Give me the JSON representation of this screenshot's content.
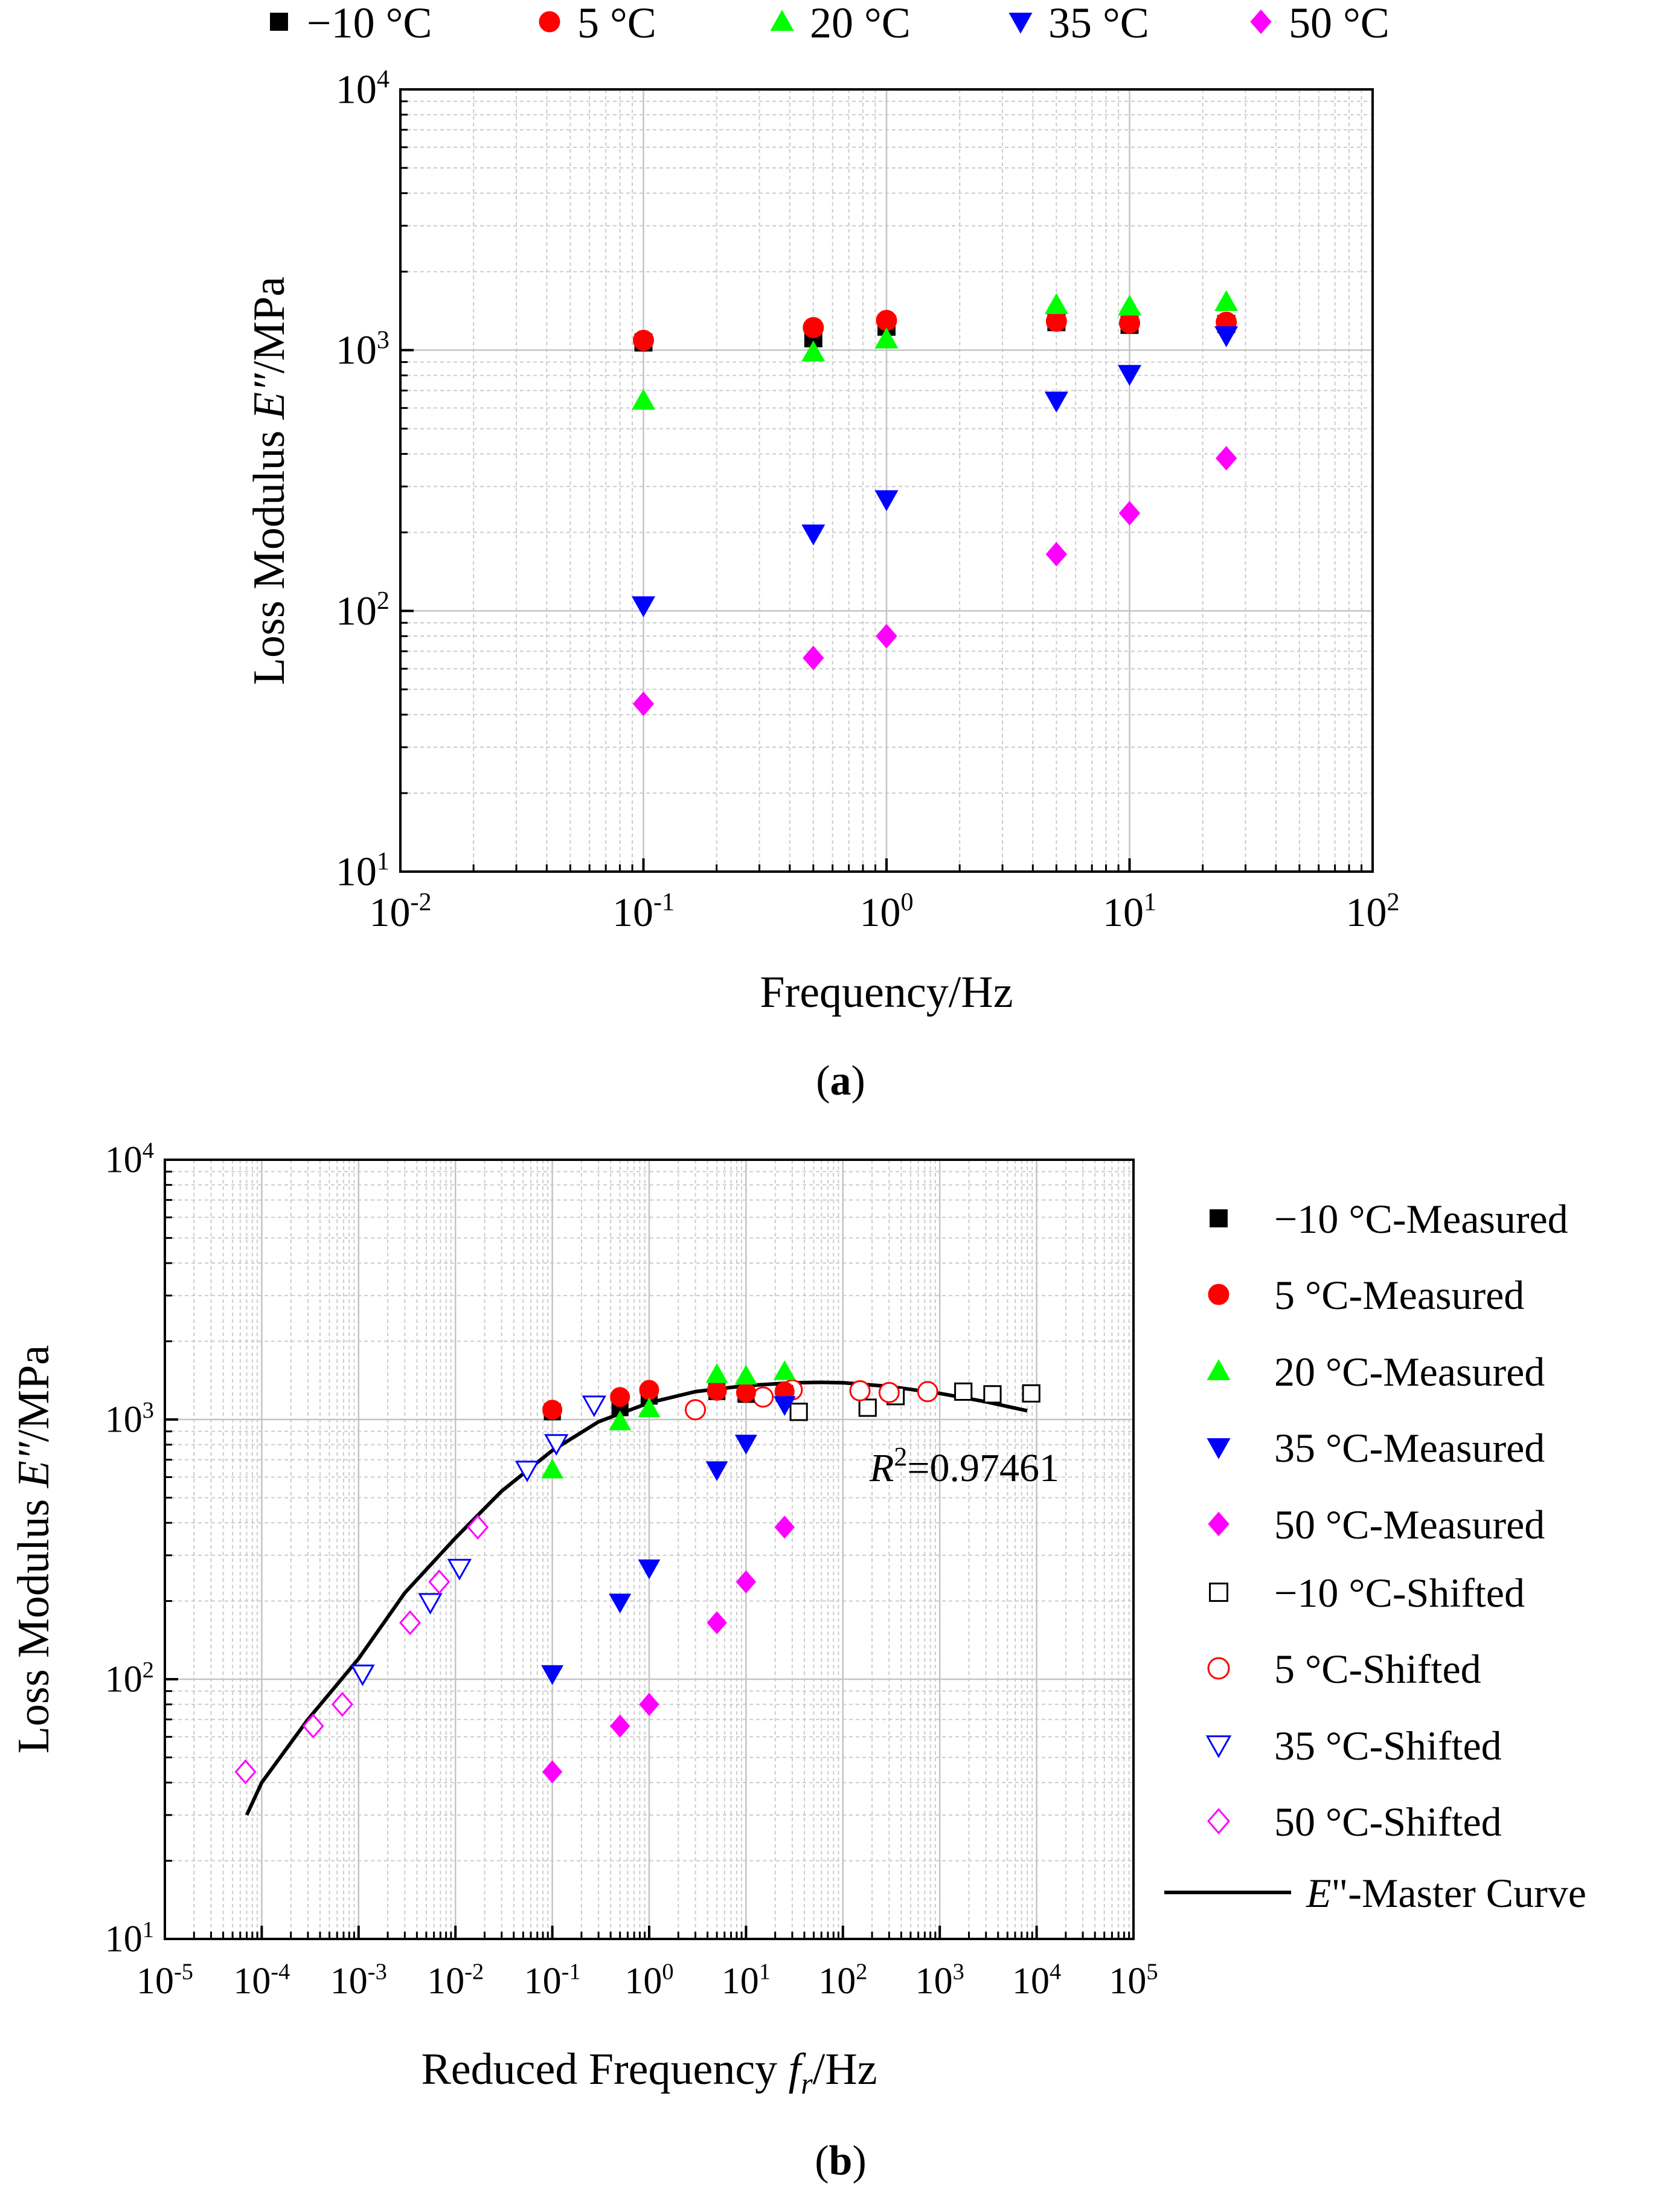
{
  "figure": {
    "panel_a_label": "a",
    "panel_b_label": "b"
  },
  "chart_data": [
    {
      "type": "scatter",
      "panel": "a",
      "title": "",
      "xlabel": "Frequency/Hz",
      "ylabel_prefix": "Loss Modulus ",
      "ylabel_var": "E″",
      "ylabel_suffix": "/MPa",
      "xscale": "log",
      "yscale": "log",
      "xlim": [
        0.01,
        100
      ],
      "ylim": [
        10,
        10000
      ],
      "x_tick_exponents": [
        "-2",
        "-1",
        "0",
        "1",
        "2"
      ],
      "y_tick_exponents": [
        "1",
        "2",
        "3",
        "4"
      ],
      "tick_base": "10",
      "grid": true,
      "legend_position": "top",
      "x": [
        0.1,
        0.5,
        1,
        5,
        10,
        25
      ],
      "series": [
        {
          "name": "−10 °C",
          "marker": "square",
          "filled": true,
          "color": "#000000",
          "values": [
            1070,
            1110,
            1230,
            1280,
            1250,
            1260
          ]
        },
        {
          "name": "5 °C",
          "marker": "circle",
          "filled": true,
          "color": "#ff0000",
          "values": [
            1090,
            1220,
            1300,
            1290,
            1270,
            1280
          ]
        },
        {
          "name": "20 °C",
          "marker": "triangle-up",
          "filled": true,
          "color": "#00ff00",
          "values": [
            640,
            980,
            1100,
            1490,
            1470,
            1530
          ]
        },
        {
          "name": "35 °C",
          "marker": "triangle-down",
          "filled": true,
          "color": "#0000ff",
          "values": [
            105,
            198,
            268,
            640,
            810,
            1140
          ]
        },
        {
          "name": "50 °C",
          "marker": "diamond",
          "filled": true,
          "color": "#ff00ff",
          "values": [
            44,
            66,
            80,
            165,
            237,
            385
          ]
        }
      ]
    },
    {
      "type": "scatter",
      "panel": "b",
      "title": "",
      "xlabel_prefix": "Reduced Frequency ",
      "xlabel_var": "f",
      "xlabel_sub": "r",
      "xlabel_suffix": "/Hz",
      "ylabel_prefix": "Loss Modulus ",
      "ylabel_var": "E″",
      "ylabel_suffix": "/MPa",
      "xscale": "log",
      "yscale": "log",
      "xlim": [
        1e-05,
        100000
      ],
      "ylim": [
        10,
        10000
      ],
      "x_tick_exponents": [
        "-5",
        "-4",
        "-3",
        "-2",
        "-1",
        "0",
        "1",
        "2",
        "3",
        "4",
        "5"
      ],
      "y_tick_exponents": [
        "1",
        "2",
        "3",
        "4"
      ],
      "tick_base": "10",
      "grid": true,
      "legend_position": "right",
      "r2_var": "R",
      "r2_sup": "2",
      "r2_value": "=0.97461",
      "series": [
        {
          "name": "−10 °C-Measured",
          "marker": "square",
          "filled": true,
          "color": "#000000",
          "x": [
            0.1,
            0.5,
            1,
            5,
            10,
            25
          ],
          "values": [
            1070,
            1110,
            1230,
            1280,
            1250,
            1260
          ]
        },
        {
          "name": "5 °C-Measured",
          "marker": "circle",
          "filled": true,
          "color": "#ff0000",
          "x": [
            0.1,
            0.5,
            1,
            5,
            10,
            25
          ],
          "values": [
            1090,
            1220,
            1300,
            1290,
            1270,
            1280
          ]
        },
        {
          "name": "20 °C-Measured",
          "marker": "triangle-up",
          "filled": true,
          "color": "#00ff00",
          "x": [
            0.1,
            0.5,
            1,
            5,
            10,
            25
          ],
          "values": [
            640,
            980,
            1100,
            1490,
            1470,
            1530
          ]
        },
        {
          "name": "35 °C-Measured",
          "marker": "triangle-down",
          "filled": true,
          "color": "#0000ff",
          "x": [
            0.1,
            0.5,
            1,
            5,
            10,
            25
          ],
          "values": [
            105,
            198,
            268,
            640,
            810,
            1140
          ]
        },
        {
          "name": "50 °C-Measured",
          "marker": "diamond",
          "filled": true,
          "color": "#ff00ff",
          "x": [
            0.1,
            0.5,
            1,
            5,
            10,
            25
          ],
          "values": [
            44,
            66,
            80,
            165,
            237,
            385
          ]
        },
        {
          "name": "−10 °C-Shifted",
          "marker": "square",
          "filled": false,
          "color": "#000000",
          "x": [
            35,
            180,
            350,
            1750,
            3500,
            8800
          ],
          "values": [
            1070,
            1110,
            1230,
            1280,
            1250,
            1260
          ]
        },
        {
          "name": "5 °C-Shifted",
          "marker": "circle",
          "filled": false,
          "color": "#ff0000",
          "x": [
            3,
            15,
            30,
            150,
            300,
            750
          ],
          "values": [
            1090,
            1220,
            1300,
            1290,
            1270,
            1280
          ]
        },
        {
          "name": "35 °C-Shifted",
          "marker": "triangle-down",
          "filled": false,
          "color": "#0000ff",
          "x": [
            0.0011,
            0.0055,
            0.011,
            0.055,
            0.11,
            0.27
          ],
          "values": [
            105,
            198,
            268,
            640,
            810,
            1140
          ]
        },
        {
          "name": "50 °C-Shifted",
          "marker": "diamond",
          "filled": false,
          "color": "#ff00ff",
          "x": [
            6.8e-05,
            0.00034,
            0.00068,
            0.0034,
            0.0068,
            0.017
          ],
          "values": [
            44,
            66,
            80,
            165,
            237,
            385
          ]
        },
        {
          "name": "E\"-Master Curve",
          "marker": "line",
          "filled": false,
          "color": "#000000",
          "x": [
            7e-05,
            0.0001,
            0.0003,
            0.001,
            0.003,
            0.01,
            0.03,
            0.1,
            0.3,
            1,
            3,
            10,
            30,
            60,
            100,
            300,
            1000,
            3000,
            8000
          ],
          "values": [
            30,
            40,
            70,
            120,
            215,
            350,
            530,
            760,
            980,
            1160,
            1280,
            1350,
            1385,
            1390,
            1385,
            1340,
            1260,
            1170,
            1080
          ]
        }
      ]
    }
  ]
}
